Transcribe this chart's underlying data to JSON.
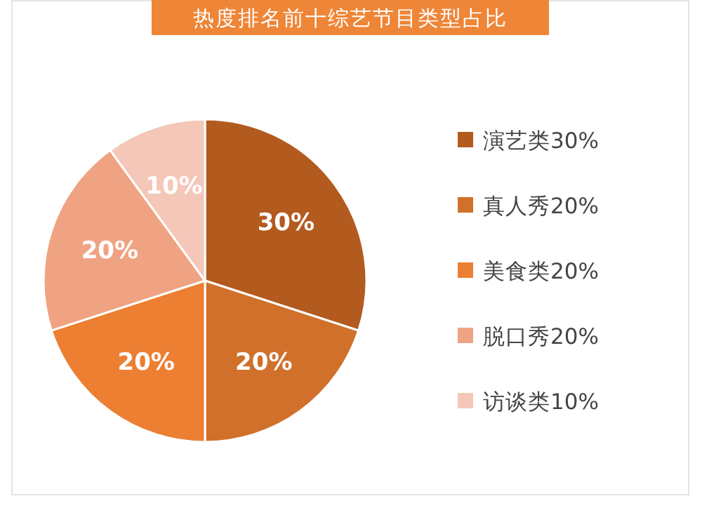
{
  "chart_data": {
    "type": "pie",
    "title": "热度排名前十综艺节目类型占比",
    "categories": [
      "演艺类30%",
      "真人秀20%",
      "美食类20%",
      "脱口秀20%",
      "访谈类10%"
    ],
    "values": [
      30,
      20,
      20,
      20,
      10
    ],
    "value_labels": [
      "30%",
      "20%",
      "20%",
      "20%",
      "10%"
    ],
    "colors": [
      "#b35a1f",
      "#d0702a",
      "#ec7f32",
      "#f0a383",
      "#f4c7b8"
    ],
    "legend": "right"
  }
}
